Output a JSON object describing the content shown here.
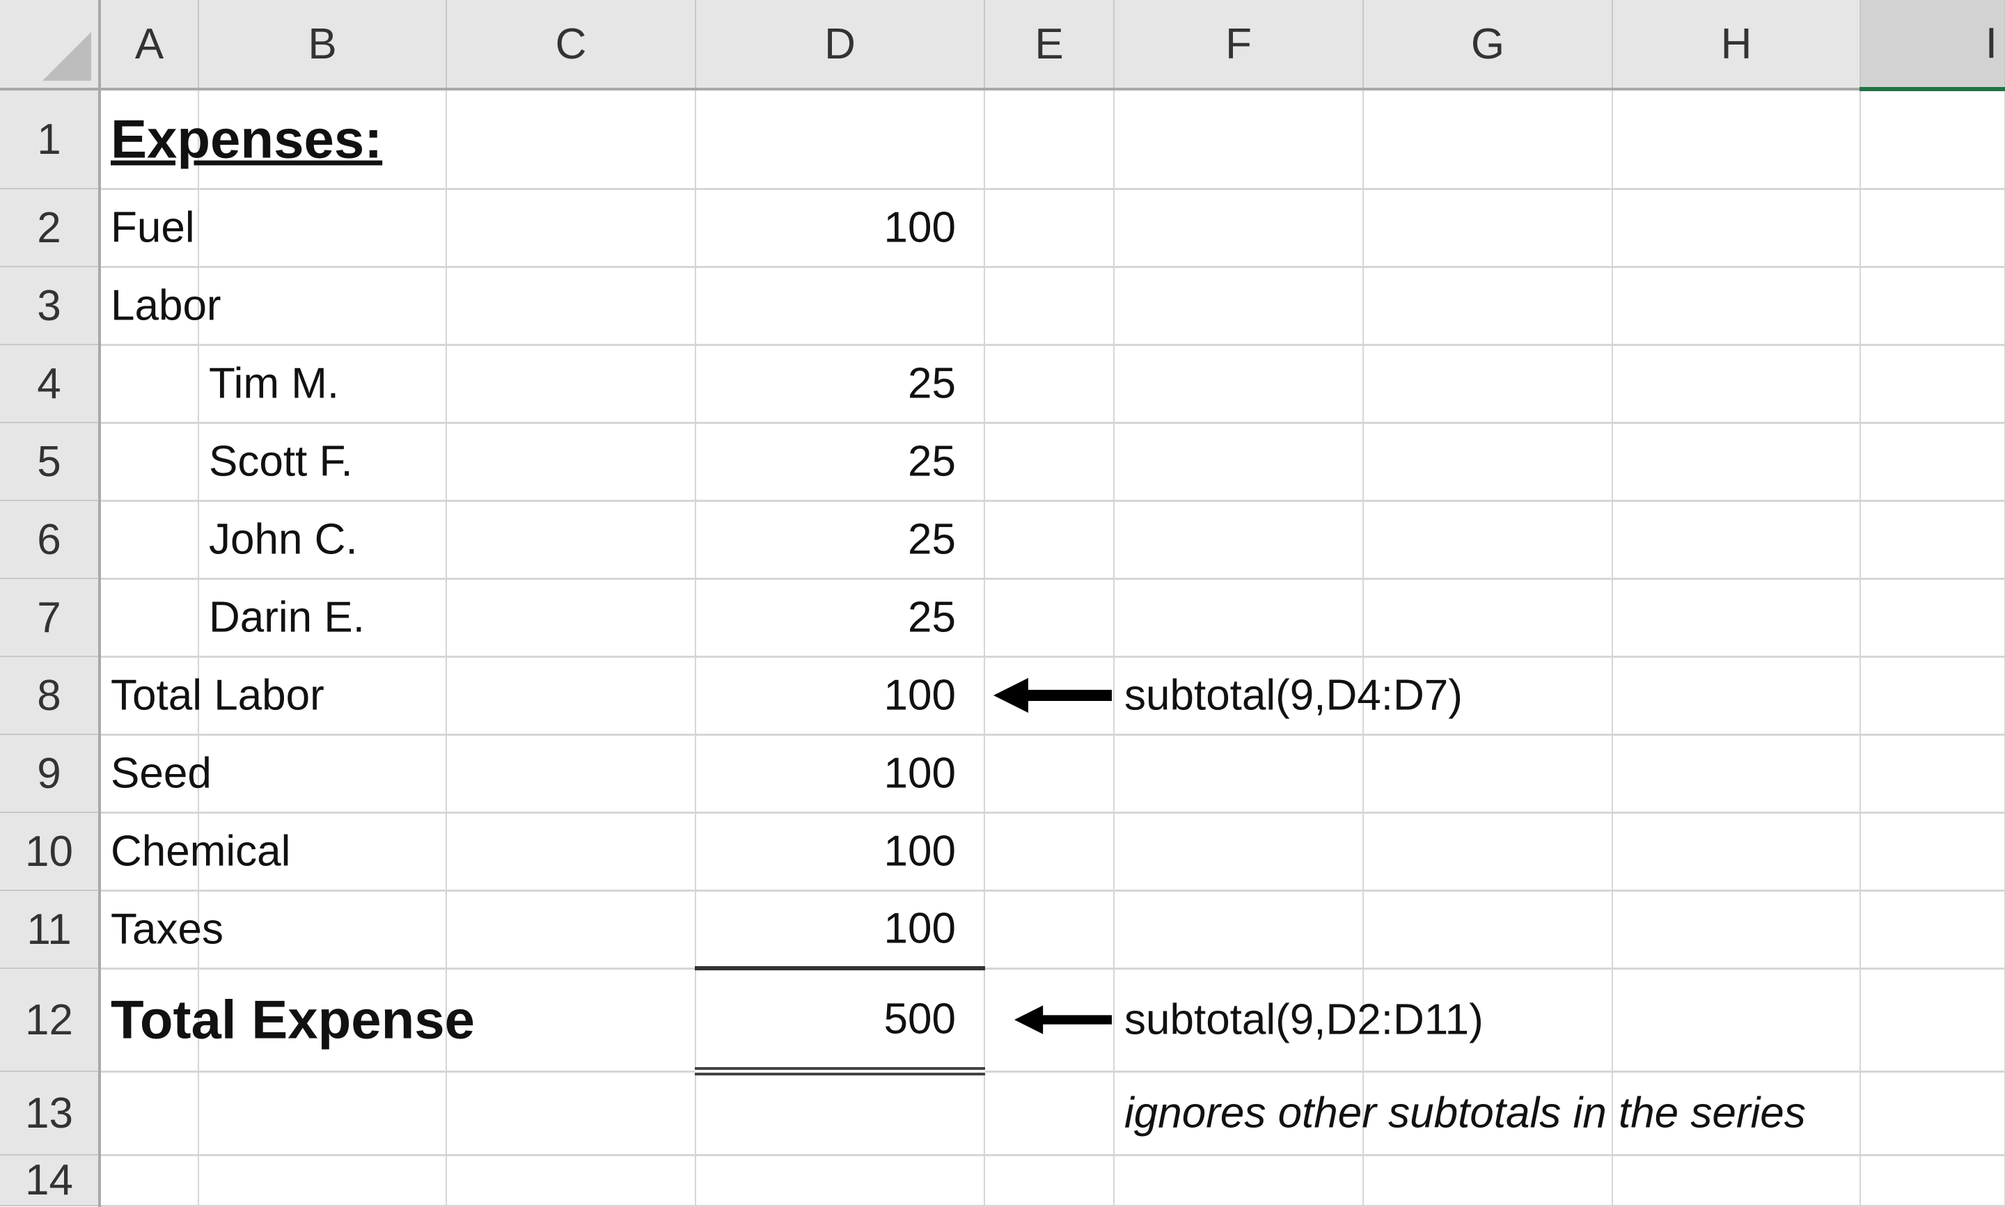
{
  "columns": [
    "A",
    "B",
    "C",
    "D",
    "E",
    "F",
    "G",
    "H",
    "I"
  ],
  "selected_column": "I",
  "rows": [
    {
      "num": "1",
      "a": "Expenses:",
      "style": "heading"
    },
    {
      "num": "2",
      "a": "Fuel",
      "d": "100"
    },
    {
      "num": "3",
      "a": "Labor"
    },
    {
      "num": "4",
      "b": "Tim M.",
      "d": "25"
    },
    {
      "num": "5",
      "b": "Scott F.",
      "d": "25"
    },
    {
      "num": "6",
      "b": "John C.",
      "d": "25"
    },
    {
      "num": "7",
      "b": "Darin E.",
      "d": "25"
    },
    {
      "num": "8",
      "a": "Total Labor",
      "d": "100",
      "arrow": true,
      "f": "subtotal(9,D4:D7)"
    },
    {
      "num": "9",
      "a": "Seed",
      "d": "100"
    },
    {
      "num": "10",
      "a": "Chemical",
      "d": "100"
    },
    {
      "num": "11",
      "a": "Taxes",
      "d": "100"
    },
    {
      "num": "12",
      "a": "Total Expense",
      "d": "500",
      "style": "total",
      "arrow": true,
      "f": "subtotal(9,D2:D11)"
    },
    {
      "num": "13",
      "f": "ignores other subtotals in the series",
      "f_style": "italic"
    },
    {
      "num": "14"
    }
  ],
  "colors": {
    "grid": "#d6d6d6",
    "header_bg": "#e6e6e6",
    "selection": "#217346"
  }
}
